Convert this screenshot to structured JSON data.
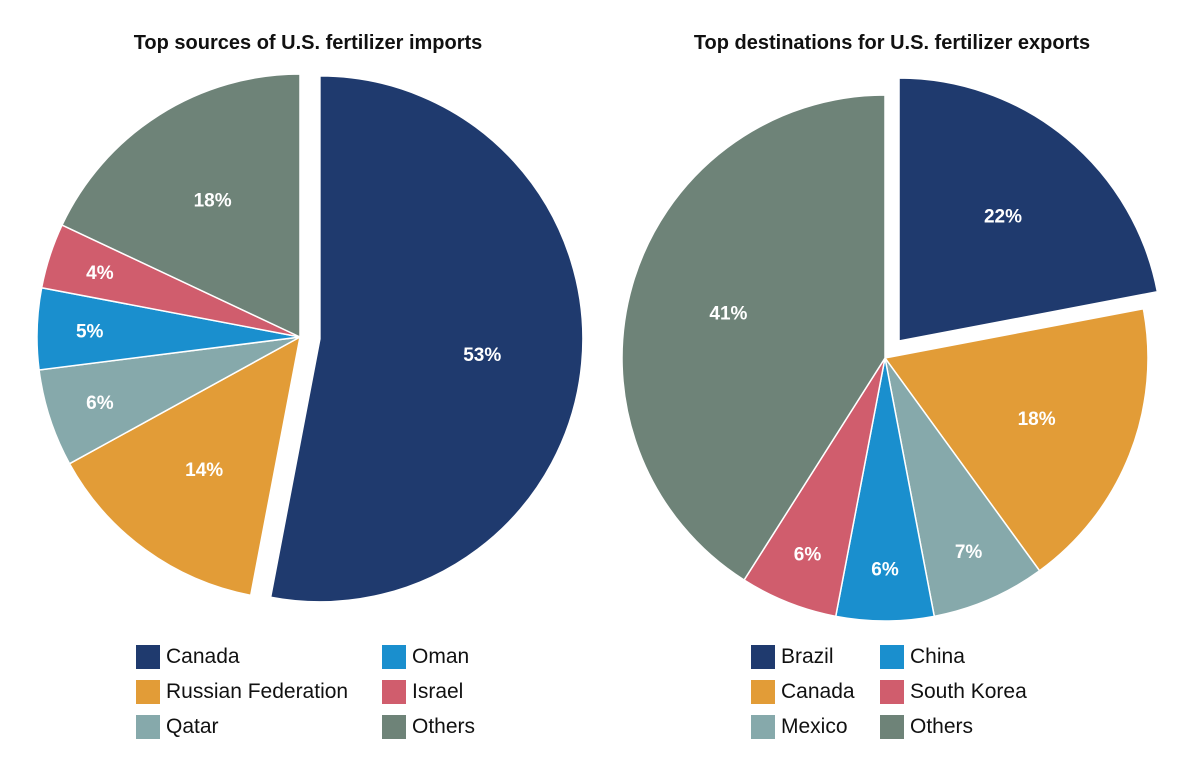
{
  "chart_data": [
    {
      "type": "pie",
      "title": "Top sources of U.S. fertilizer imports",
      "categories": [
        "Canada",
        "Russian Federation",
        "Qatar",
        "Oman",
        "Israel",
        "Others"
      ],
      "values": [
        53,
        14,
        6,
        5,
        4,
        18
      ],
      "labels": [
        "53%",
        "14%",
        "6%",
        "5%",
        "4%",
        "18%"
      ],
      "colors": [
        "#1f3a6e",
        "#e29c37",
        "#86a9ab",
        "#1a8fce",
        "#d05d6d",
        "#6e8378"
      ],
      "exploded": "Canada",
      "legend_placement": "bottom"
    },
    {
      "type": "pie",
      "title": "Top destinations for U.S. fertilizer exports",
      "categories": [
        "Brazil",
        "Canada",
        "Mexico",
        "China",
        "South Korea",
        "Others"
      ],
      "values": [
        22,
        18,
        7,
        6,
        6,
        41
      ],
      "labels": [
        "22%",
        "18%",
        "7%",
        "6%",
        "6%",
        "41%"
      ],
      "colors": [
        "#1f3a6e",
        "#e29c37",
        "#86a9ab",
        "#1a8fce",
        "#d05d6d",
        "#6e8378"
      ],
      "exploded": "Brazil",
      "legend_placement": "bottom"
    }
  ]
}
